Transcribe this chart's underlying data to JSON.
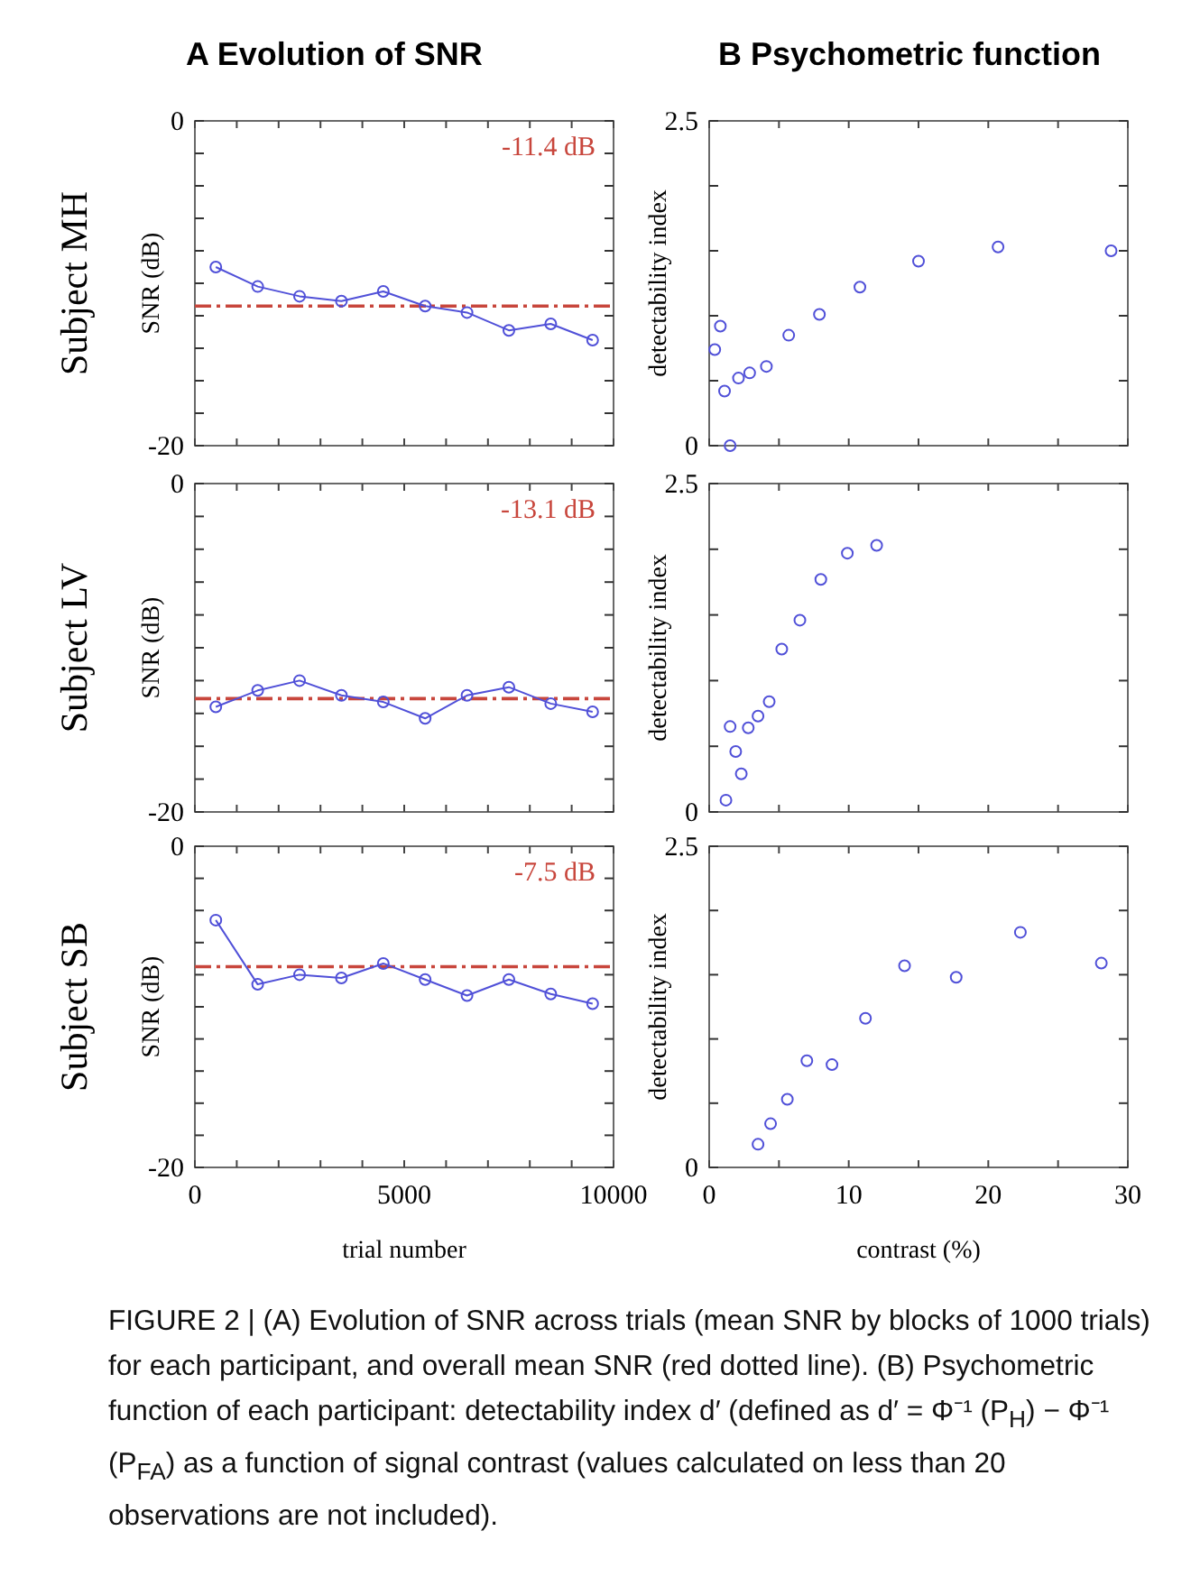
{
  "chart_data": [
    {
      "type": "line",
      "title": "A Evolution of SNR",
      "ylabel": "SNR (dB)",
      "annotations": [
        "Subject MH"
      ],
      "x": [
        500,
        1500,
        2500,
        3500,
        4500,
        5500,
        6500,
        7500,
        8500,
        9500
      ],
      "xlim": [
        0,
        10000
      ],
      "ylim": [
        -20,
        0
      ],
      "tick_labels": "y",
      "marker": "circle",
      "grid": false,
      "xticks": [
        {
          "value": 0,
          "label": null
        },
        {
          "value": 1000,
          "label": null
        },
        {
          "value": 2000,
          "label": null
        },
        {
          "value": 3000,
          "label": null
        },
        {
          "value": 4000,
          "label": null
        },
        {
          "value": 5000,
          "label": null
        },
        {
          "value": 6000,
          "label": null
        },
        {
          "value": 7000,
          "label": null
        },
        {
          "value": 8000,
          "label": null
        },
        {
          "value": 9000,
          "label": null
        },
        {
          "value": 10000,
          "label": null
        }
      ],
      "yticks": [
        {
          "value": -20,
          "label": "-20"
        },
        {
          "value": -18,
          "label": null
        },
        {
          "value": -16,
          "label": null
        },
        {
          "value": -14,
          "label": null
        },
        {
          "value": -12,
          "label": null
        },
        {
          "value": -10,
          "label": null
        },
        {
          "value": -8,
          "label": null
        },
        {
          "value": -6,
          "label": null
        },
        {
          "value": -4,
          "label": null
        },
        {
          "value": -2,
          "label": null
        },
        {
          "value": 0,
          "label": "0"
        }
      ],
      "ref_lines": [
        {
          "axis": "y",
          "value": -11.4,
          "label": "-11.4 dB",
          "color": "#c8463c",
          "line_style": "dashed"
        }
      ],
      "series": [
        {
          "color": "#5050d8",
          "values": [
            -9.0,
            -10.2,
            -10.8,
            -11.1,
            -10.5,
            -11.4,
            -11.8,
            -12.9,
            -12.5,
            -13.5
          ]
        }
      ]
    },
    {
      "type": "scatter",
      "title": "B Psychometric function",
      "ylabel": "detectability index",
      "xlim": [
        0,
        30
      ],
      "ylim": [
        0,
        2.5
      ],
      "tick_labels": "y",
      "marker": "circle",
      "grid": false,
      "xticks": [
        {
          "value": 0,
          "label": null
        },
        {
          "value": 5,
          "label": null
        },
        {
          "value": 10,
          "label": null
        },
        {
          "value": 15,
          "label": null
        },
        {
          "value": 20,
          "label": null
        },
        {
          "value": 25,
          "label": null
        },
        {
          "value": 30,
          "label": null
        }
      ],
      "yticks": [
        {
          "value": 0,
          "label": "0"
        },
        {
          "value": 0.5,
          "label": null
        },
        {
          "value": 1,
          "label": null
        },
        {
          "value": 1.5,
          "label": null
        },
        {
          "value": 2,
          "label": null
        },
        {
          "value": 2.5,
          "label": "2.5"
        }
      ],
      "series": [
        {
          "color": "#5050d8",
          "x": [
            0.4,
            0.8,
            1.1,
            1.5,
            2.1,
            2.9,
            4.1,
            5.7,
            7.9,
            10.8,
            15.0,
            20.7,
            28.8
          ],
          "values": [
            0.74,
            0.92,
            0.42,
            0,
            0.52,
            0.56,
            0.61,
            0.85,
            1.01,
            1.22,
            1.42,
            1.53,
            1.5
          ]
        }
      ]
    },
    {
      "type": "line",
      "ylabel": "SNR (dB)",
      "annotations": [
        "Subject LV"
      ],
      "x": [
        500,
        1500,
        2500,
        3500,
        4500,
        5500,
        6500,
        7500,
        8500,
        9500
      ],
      "xlim": [
        0,
        10000
      ],
      "ylim": [
        -20,
        0
      ],
      "tick_labels": "y",
      "marker": "circle",
      "grid": false,
      "xticks": [
        {
          "value": 0,
          "label": null
        },
        {
          "value": 1000,
          "label": null
        },
        {
          "value": 2000,
          "label": null
        },
        {
          "value": 3000,
          "label": null
        },
        {
          "value": 4000,
          "label": null
        },
        {
          "value": 5000,
          "label": null
        },
        {
          "value": 6000,
          "label": null
        },
        {
          "value": 7000,
          "label": null
        },
        {
          "value": 8000,
          "label": null
        },
        {
          "value": 9000,
          "label": null
        },
        {
          "value": 10000,
          "label": null
        }
      ],
      "yticks": [
        {
          "value": -20,
          "label": "-20"
        },
        {
          "value": -18,
          "label": null
        },
        {
          "value": -16,
          "label": null
        },
        {
          "value": -14,
          "label": null
        },
        {
          "value": -12,
          "label": null
        },
        {
          "value": -10,
          "label": null
        },
        {
          "value": -8,
          "label": null
        },
        {
          "value": -6,
          "label": null
        },
        {
          "value": -4,
          "label": null
        },
        {
          "value": -2,
          "label": null
        },
        {
          "value": 0,
          "label": "0"
        }
      ],
      "ref_lines": [
        {
          "axis": "y",
          "value": -13.1,
          "label": "-13.1 dB",
          "color": "#c8463c",
          "line_style": "dashed"
        }
      ],
      "series": [
        {
          "color": "#5050d8",
          "values": [
            -13.6,
            -12.6,
            -12.0,
            -12.9,
            -13.3,
            -14.3,
            -12.9,
            -12.4,
            -13.4,
            -13.9
          ]
        }
      ]
    },
    {
      "type": "scatter",
      "ylabel": "detectability index",
      "xlim": [
        0,
        30
      ],
      "ylim": [
        0,
        2.5
      ],
      "tick_labels": "y",
      "marker": "circle",
      "grid": false,
      "xticks": [
        {
          "value": 0,
          "label": null
        },
        {
          "value": 5,
          "label": null
        },
        {
          "value": 10,
          "label": null
        },
        {
          "value": 15,
          "label": null
        },
        {
          "value": 20,
          "label": null
        },
        {
          "value": 25,
          "label": null
        },
        {
          "value": 30,
          "label": null
        }
      ],
      "yticks": [
        {
          "value": 0,
          "label": "0"
        },
        {
          "value": 0.5,
          "label": null
        },
        {
          "value": 1,
          "label": null
        },
        {
          "value": 1.5,
          "label": null
        },
        {
          "value": 2,
          "label": null
        },
        {
          "value": 2.5,
          "label": "2.5"
        }
      ],
      "series": [
        {
          "color": "#5050d8",
          "x": [
            1.2,
            1.5,
            1.9,
            2.3,
            2.8,
            3.5,
            4.3,
            5.2,
            6.5,
            8.0,
            9.9,
            12.0
          ],
          "values": [
            0.09,
            0.65,
            0.46,
            0.29,
            0.64,
            0.73,
            0.84,
            1.24,
            1.46,
            1.77,
            1.97,
            2.03
          ]
        }
      ]
    },
    {
      "type": "line",
      "ylabel": "SNR (dB)",
      "xlabel": "trial number",
      "annotations": [
        "Subject SB"
      ],
      "x": [
        500,
        1500,
        2500,
        3500,
        4500,
        5500,
        6500,
        7500,
        8500,
        9500
      ],
      "xlim": [
        0,
        10000
      ],
      "ylim": [
        -20,
        0
      ],
      "marker": "circle",
      "grid": false,
      "xticks": [
        {
          "value": 0,
          "label": "0"
        },
        {
          "value": 1000,
          "label": null
        },
        {
          "value": 2000,
          "label": null
        },
        {
          "value": 3000,
          "label": null
        },
        {
          "value": 4000,
          "label": null
        },
        5000,
        {
          "value": 6000,
          "label": null
        },
        {
          "value": 7000,
          "label": null
        },
        {
          "value": 8000,
          "label": null
        },
        {
          "value": 9000,
          "label": null
        },
        10000
      ],
      "yticks": [
        {
          "value": -20,
          "label": "-20"
        },
        {
          "value": -18,
          "label": null
        },
        {
          "value": -16,
          "label": null
        },
        {
          "value": -14,
          "label": null
        },
        {
          "value": -12,
          "label": null
        },
        {
          "value": -10,
          "label": null
        },
        {
          "value": -8,
          "label": null
        },
        {
          "value": -6,
          "label": null
        },
        {
          "value": -4,
          "label": null
        },
        {
          "value": -2,
          "label": null
        },
        {
          "value": 0,
          "label": "0"
        }
      ],
      "ref_lines": [
        {
          "axis": "y",
          "value": -7.5,
          "label": "-7.5 dB",
          "color": "#c8463c",
          "line_style": "dashed"
        }
      ],
      "series": [
        {
          "color": "#5050d8",
          "values": [
            -4.6,
            -8.6,
            -8.0,
            -8.2,
            -7.3,
            -8.3,
            -9.3,
            -8.3,
            -9.2,
            -9.8
          ]
        }
      ]
    },
    {
      "type": "scatter",
      "ylabel": "detectability index",
      "xlabel": "contrast (%)",
      "xlim": [
        0,
        30
      ],
      "ylim": [
        0,
        2.5
      ],
      "marker": "circle",
      "grid": false,
      "annotations": [
        "FIGURE 2 | (A) Evolution of SNR across trials (mean SNR by blocks of 1000 trials) for each participant, and overall mean SNR (red dotted line). (B) Psychometric function of each participant: detectability index d′ (defined as d′ = Φ⁻¹ (P$_{H}$) − Φ⁻¹ (P$_{FA}$) as a function of signal contrast (values calculated on less than 20 observations are not included)."
      ],
      "xticks": [
        {
          "value": 0,
          "label": "0"
        },
        {
          "value": 5,
          "label": null
        },
        10,
        {
          "value": 15,
          "label": null
        },
        20,
        {
          "value": 25,
          "label": null
        },
        30
      ],
      "yticks": [
        {
          "value": 0,
          "label": "0"
        },
        {
          "value": 0.5,
          "label": null
        },
        {
          "value": 1,
          "label": null
        },
        {
          "value": 1.5,
          "label": null
        },
        {
          "value": 2,
          "label": null
        },
        {
          "value": 2.5,
          "label": "2.5"
        }
      ],
      "series": [
        {
          "color": "#5050d8",
          "x": [
            3.5,
            4.4,
            5.6,
            7.0,
            8.8,
            11.2,
            14.0,
            17.7,
            22.3,
            28.1
          ],
          "values": [
            0.18,
            0.34,
            0.53,
            0.83,
            0.8,
            1.16,
            1.57,
            1.48,
            1.83,
            1.59
          ]
        }
      ]
    }
  ]
}
